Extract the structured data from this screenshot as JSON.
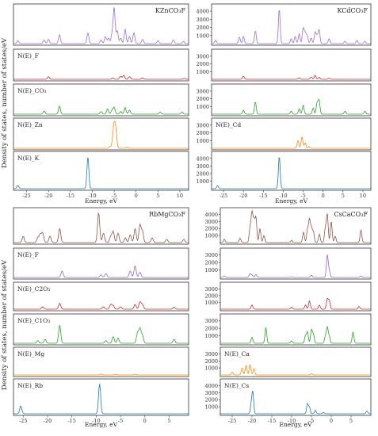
{
  "figure": {
    "shared_ylabel": "Density of states, number of states/eV",
    "colors": {
      "total": "#9b6fcf",
      "F": "#d62728",
      "CO3": "#2ca02c",
      "Zn": "#ff8c0a",
      "K": "#1f77b4",
      "total_b": "#9b6fcf",
      "total_rb": "#8c564b",
      "F_rb": "#9467bd",
      "Cs": "#1f77b4"
    }
  },
  "chart_data": [
    {
      "type": "line",
      "title": "KZnCO3F",
      "xlabel": "Energy, eV",
      "xlim": [
        -28,
        12
      ],
      "xticks": [
        -25,
        -20,
        -15,
        -10,
        -5,
        0,
        5,
        10
      ],
      "yticks": [],
      "panels": [
        {
          "name": "",
          "label": "KZnCO₃F",
          "ymax": 100,
          "color_key": "total",
          "x": [
            -27,
            -21,
            -20,
            -17.5,
            -11,
            -8,
            -7,
            -6.3,
            -5.5,
            -5,
            -4.3,
            -3.5,
            -2.5,
            -1.5,
            -0.5,
            1.5,
            5,
            8.5,
            10.8
          ],
          "y": [
            8,
            10,
            12,
            25,
            30,
            10,
            20,
            15,
            25,
            100,
            35,
            15,
            40,
            20,
            30,
            12,
            8,
            10,
            6
          ]
        },
        {
          "name": "F",
          "label": "N(E)_F",
          "ymax": 100,
          "color_key": "F",
          "x": [
            -20,
            -5.3,
            -3.5,
            -2.8,
            -1.5,
            1.5,
            11
          ],
          "y": [
            10,
            5,
            12,
            15,
            10,
            5,
            3
          ]
        },
        {
          "name": "CO3",
          "label": "N(E)_CO₃",
          "ymax": 100,
          "color_key": "CO3",
          "x": [
            -21,
            -17.5,
            -8,
            -6.5,
            -5.5,
            -5,
            -3.5,
            -2.5,
            -1.5,
            5.5,
            10.5
          ],
          "y": [
            12,
            30,
            10,
            20,
            15,
            25,
            10,
            25,
            15,
            8,
            8
          ]
        },
        {
          "name": "Zn",
          "label": "N(E)_Zn",
          "ymax": 100,
          "color_key": "Zn",
          "x": [
            -6,
            -5.4,
            -5,
            -4.6,
            -2
          ],
          "y": [
            5,
            20,
            90,
            60,
            4
          ]
        },
        {
          "name": "K",
          "label": "N(E)_K",
          "ymax": 100,
          "color_key": "K",
          "x": [
            -27,
            -11
          ],
          "y": [
            10,
            95
          ]
        }
      ]
    },
    {
      "type": "line",
      "title": "KCdCO3F",
      "xlabel": "Energy, eV",
      "xlim": [
        -28,
        12
      ],
      "xticks": [
        -25,
        -20,
        -15,
        -10,
        -5,
        0,
        5,
        10
      ],
      "yticks": [
        "1000",
        "2000",
        "3000",
        "4000"
      ],
      "panels": [
        {
          "name": "",
          "label": "KCdCO₃F",
          "ymax": 4500,
          "color_key": "total_b",
          "x": [
            -27,
            -21,
            -20,
            -17,
            -11,
            -8,
            -7,
            -6,
            -5,
            -4.5,
            -4,
            -3,
            -2,
            -1.5,
            -1,
            1.5,
            5.5,
            8.5,
            10.5
          ],
          "y": [
            400,
            800,
            900,
            1600,
            4300,
            600,
            900,
            1200,
            1900,
            1300,
            1000,
            700,
            1400,
            900,
            1700,
            600,
            300,
            400,
            300
          ]
        },
        {
          "name": "F",
          "label": "",
          "ymax": 3500,
          "color_key": "F",
          "x": [
            -20,
            -6,
            -3,
            -2,
            -1,
            1.5
          ],
          "y": [
            400,
            200,
            300,
            500,
            250,
            150
          ]
        },
        {
          "name": "CO3",
          "label": "",
          "ymax": 3500,
          "color_key": "CO3",
          "x": [
            -20,
            -17,
            -8,
            -6,
            -5,
            -2.5,
            -1.5,
            -1,
            5.5,
            10.5
          ],
          "y": [
            500,
            1600,
            400,
            700,
            1200,
            800,
            1500,
            1800,
            400,
            400
          ]
        },
        {
          "name": "Cd",
          "label": "N(E)_Cd",
          "ymax": 3500,
          "color_key": "Zn",
          "x": [
            -6.3,
            -5.3,
            -4.5,
            -3.5
          ],
          "y": [
            1000,
            1500,
            700,
            200
          ]
        },
        {
          "name": "K",
          "label": "",
          "ymax": 4500,
          "color_key": "K",
          "x": [
            -26.5,
            -11
          ],
          "y": [
            400,
            4300
          ]
        }
      ]
    },
    {
      "type": "line",
      "title": "RbMgCO3F",
      "xlabel": "Energy, eV",
      "xlim": [
        -27,
        9
      ],
      "xticks": [
        -25,
        -20,
        -15,
        -10,
        -5,
        0,
        5
      ],
      "yticks": [],
      "panels": [
        {
          "name": "",
          "label": "RbMgCO₃F",
          "ymax": 100,
          "color_key": "total_rb",
          "x": [
            -25,
            -22,
            -21.5,
            -21,
            -19.5,
            -17.5,
            -9.5,
            -8.5,
            -7,
            -6.5,
            -5.5,
            -4,
            -3,
            -2,
            -1,
            -0.5,
            1.5,
            4.5,
            8
          ],
          "y": [
            20,
            15,
            25,
            30,
            20,
            45,
            95,
            30,
            20,
            35,
            30,
            15,
            25,
            45,
            55,
            35,
            15,
            10,
            10
          ]
        },
        {
          "name": "F",
          "label": "N(E)_F",
          "ymax": 100,
          "color_key": "F_rb",
          "x": [
            -17,
            -9,
            -8,
            -3,
            -2,
            -1
          ],
          "y": [
            25,
            10,
            15,
            25,
            45,
            20
          ]
        },
        {
          "name": "C2O3",
          "label": "N(E)_C2O₃",
          "ymax": 100,
          "color_key": "F",
          "x": [
            -21,
            -17.5,
            -8.5,
            -7,
            -6.5,
            -5,
            -2,
            -1,
            -0.5,
            6
          ],
          "y": [
            10,
            25,
            10,
            20,
            15,
            10,
            20,
            30,
            20,
            8
          ]
        },
        {
          "name": "C1O3",
          "label": "N(E)_C1O₃",
          "ymax": 100,
          "color_key": "CO3",
          "x": [
            -22,
            -20.5,
            -17.5,
            -8,
            -6.5,
            -5.5,
            -1.5,
            -1,
            -0.5,
            6
          ],
          "y": [
            10,
            15,
            70,
            10,
            25,
            20,
            40,
            55,
            30,
            15
          ]
        },
        {
          "name": "Mg",
          "label": "N(E)_Mg",
          "ymax": 100,
          "color_key": "Zn",
          "x": [
            -9,
            -6,
            -2
          ],
          "y": [
            4,
            3,
            3
          ]
        },
        {
          "name": "Rb",
          "label": "N(E)_Rb",
          "ymax": 100,
          "color_key": "K",
          "x": [
            -25.5,
            -9.3
          ],
          "y": [
            25,
            95
          ]
        }
      ]
    },
    {
      "type": "line",
      "title": "CsCaCO3F",
      "xlabel": "Energy, eV",
      "xlim": [
        -28,
        10
      ],
      "xticks": [
        -25,
        -20,
        -15,
        -10,
        -5,
        0,
        5
      ],
      "yticks": [
        "1000",
        "2000",
        "3000",
        "4000"
      ],
      "panels": [
        {
          "name": "",
          "label": "CsCaCO₃F",
          "ymax": 4500,
          "color_key": "total_rb",
          "x": [
            -27,
            -23,
            -20.5,
            -20,
            -19.5,
            -19,
            -18,
            -17,
            -10,
            -7,
            -6,
            -5.5,
            -5,
            -4.5,
            -3,
            -1.5,
            -1,
            0,
            1,
            7.5
          ],
          "y": [
            500,
            600,
            2000,
            4300,
            3000,
            3500,
            2000,
            1000,
            300,
            1500,
            1800,
            3200,
            2000,
            1500,
            1200,
            2000,
            4000,
            3000,
            900,
            1800
          ]
        },
        {
          "name": "F",
          "label": "",
          "ymax": 3500,
          "color_key": "F_rb",
          "x": [
            -27,
            -20.5,
            -20,
            -19,
            -10,
            -5,
            -1,
            -0.5,
            7.5
          ],
          "y": [
            200,
            500,
            300,
            400,
            100,
            300,
            3000,
            900,
            200
          ]
        },
        {
          "name": "C2O3",
          "label": "",
          "ymax": 3500,
          "color_key": "F",
          "x": [
            -20,
            -10,
            -6.5,
            -5.5,
            -3,
            -1,
            -0.5,
            7
          ],
          "y": [
            600,
            300,
            600,
            1200,
            600,
            1500,
            1300,
            400
          ]
        },
        {
          "name": "C1O3",
          "label": "",
          "ymax": 3500,
          "color_key": "CO3",
          "x": [
            -20,
            -16.5,
            -10,
            -6.5,
            -6,
            -5,
            -4.5,
            -1.5,
            -1,
            -0.5,
            5.5
          ],
          "y": [
            800,
            2100,
            300,
            1000,
            1500,
            1800,
            1200,
            900,
            2100,
            900,
            1500
          ]
        },
        {
          "name": "Ca",
          "label": "N(E)_Ca",
          "ymax": 3500,
          "color_key": "Zn",
          "x": [
            -25,
            -22.5,
            -21.5,
            -20.5,
            -19.5,
            -5
          ],
          "y": [
            400,
            1000,
            1400,
            1500,
            900,
            200
          ]
        },
        {
          "name": "Cs",
          "label": "N(E)_Cs",
          "ymax": 4500,
          "color_key": "Cs",
          "x": [
            -20.2,
            -19.8,
            -6,
            -5.5,
            -4,
            -2,
            9
          ],
          "y": [
            1200,
            3000,
            1400,
            900,
            500,
            200,
            400
          ]
        }
      ]
    }
  ]
}
